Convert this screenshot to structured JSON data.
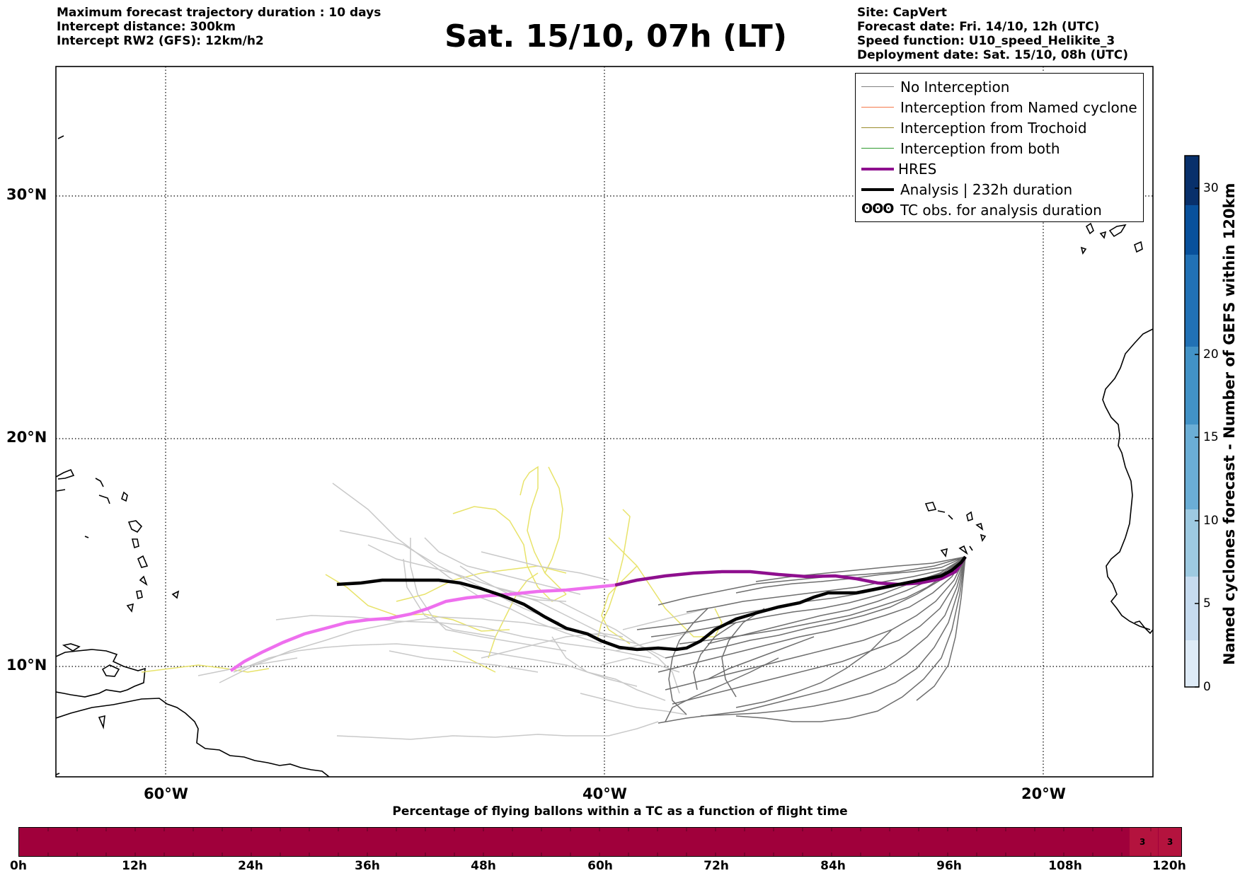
{
  "header": {
    "left_lines": [
      "Maximum forecast trajectory duration : 10 days",
      "Intercept distance: 300km",
      "Intercept RW2 (GFS):  12km/h2"
    ],
    "title": "Sat. 15/10, 07h (LT)",
    "right_lines": [
      "Site: CapVert",
      "Forecast date: Fri. 14/10, 12h (UTC)",
      "Speed function: U10_speed_Helikite_3",
      "Deployment date: Sat. 15/10, 08h (UTC)"
    ]
  },
  "map": {
    "lat_labels": [
      "30°N",
      "20°N",
      "10°N"
    ],
    "lon_labels": [
      "60°W",
      "40°W",
      "20°W"
    ],
    "grid": "dotted"
  },
  "legend": {
    "items": [
      {
        "label": "No Interception",
        "color": "#808080",
        "style": "thin"
      },
      {
        "label": "Interception from Named cyclone",
        "color": "#f4794a",
        "style": "thin"
      },
      {
        "label": "Interception from Trochoid",
        "color": "#9a8c2c",
        "style": "thin"
      },
      {
        "label": "Interception from both",
        "color": "#2e9a2e",
        "style": "thin"
      },
      {
        "label": "HRES",
        "color": "#8e0f8e",
        "style": "thick"
      },
      {
        "label": "Analysis | 232h duration",
        "color": "#000000",
        "style": "thick"
      },
      {
        "label": "TC obs. for analysis duration",
        "icon": "cyclone-symbols-icon",
        "symbols": "ʘʘʘ"
      }
    ]
  },
  "colorbar": {
    "label": "Named cyclones forecast - Number of GEFS within 120km",
    "ticks": [
      "0",
      "5",
      "10",
      "15",
      "20",
      "30"
    ],
    "colors": [
      "#deebf7",
      "#c6dbef",
      "#9ecae1",
      "#6baed6",
      "#4292c6",
      "#2171b5",
      "#08519c",
      "#08306b"
    ]
  },
  "timebar": {
    "title": "Percentage of flying ballons within a TC as a function of flight time",
    "ticks": [
      "0h",
      "12h",
      "24h",
      "36h",
      "48h",
      "60h",
      "72h",
      "84h",
      "96h",
      "108h",
      "120h"
    ],
    "values": [
      "3",
      "3"
    ],
    "colors": {
      "base": "#a0003b",
      "highlight": "#b4133e"
    }
  }
}
